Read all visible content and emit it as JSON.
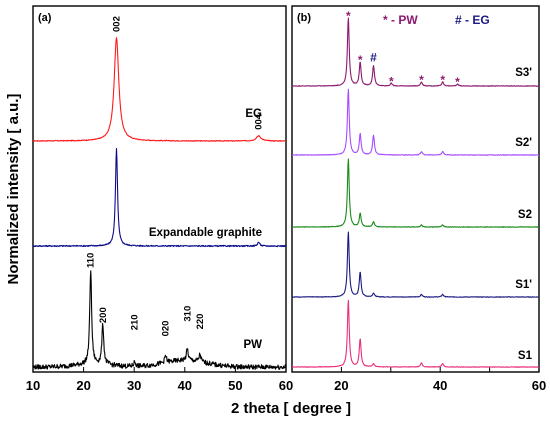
{
  "chart_data": [
    {
      "type": "line",
      "panel_label": "(a)",
      "xlabel": "2 theta [ degree ]",
      "ylabel": "Normalized intensity [ a.u.]",
      "xlim": [
        10,
        60
      ],
      "xticks": [
        "10",
        "20",
        "30",
        "40",
        "50",
        "60"
      ],
      "series": [
        {
          "name": "EG",
          "color": "#ff1a1a",
          "peaks": [
            {
              "x": 26.5,
              "rel": 1.0
            },
            {
              "x": 54.6,
              "rel": 0.05
            }
          ],
          "annotations": [
            {
              "text": "002",
              "x": 26.5
            },
            {
              "text": "004",
              "x": 54.6
            }
          ]
        },
        {
          "name": "Expandable graphite",
          "color": "#0b0b8a",
          "peaks": [
            {
              "x": 26.5,
              "rel": 1.0
            },
            {
              "x": 54.6,
              "rel": 0.04
            }
          ],
          "annotations": []
        },
        {
          "name": "PW",
          "color": "#000000",
          "peaks": [
            {
              "x": 21.4,
              "rel": 1.0
            },
            {
              "x": 23.8,
              "rel": 0.42
            },
            {
              "x": 30.1,
              "rel": 0.05
            },
            {
              "x": 36.2,
              "rel": 0.07
            },
            {
              "x": 40.5,
              "rel": 0.12
            },
            {
              "x": 43.0,
              "rel": 0.08
            }
          ],
          "annotations": [
            {
              "text": "110",
              "x": 21.4
            },
            {
              "text": "200",
              "x": 23.8
            },
            {
              "text": "210",
              "x": 30.1
            },
            {
              "text": "020",
              "x": 36.2
            },
            {
              "text": "310",
              "x": 40.5
            },
            {
              "text": "220",
              "x": 43.0
            }
          ]
        }
      ]
    },
    {
      "type": "line",
      "panel_label": "(b)",
      "xlabel": "2 theta [ degree ]",
      "xlim": [
        10,
        60
      ],
      "xticks": [
        "20",
        "40",
        "60"
      ],
      "legend": [
        "* - PW",
        "# - EG"
      ],
      "series": [
        {
          "name": "S3'",
          "color": "#8b1a70",
          "peaks": [
            {
              "x": 21.4,
              "rel": 1.0
            },
            {
              "x": 23.8,
              "rel": 0.35
            },
            {
              "x": 26.5,
              "rel": 0.3
            },
            {
              "x": 30.1,
              "rel": 0.04
            },
            {
              "x": 36.2,
              "rel": 0.06
            },
            {
              "x": 40.5,
              "rel": 0.06
            },
            {
              "x": 43.5,
              "rel": 0.03
            }
          ],
          "markers": [
            {
              "text": "*",
              "x": 21.4
            },
            {
              "text": "*",
              "x": 23.8
            },
            {
              "text": "#",
              "x": 26.5
            },
            {
              "text": "*",
              "x": 30.1
            },
            {
              "text": "*",
              "x": 36.2
            },
            {
              "text": "*",
              "x": 40.5
            },
            {
              "text": "*",
              "x": 43.5
            }
          ]
        },
        {
          "name": "S2'",
          "color": "#a64dff",
          "peaks": [
            {
              "x": 21.4,
              "rel": 1.0
            },
            {
              "x": 23.8,
              "rel": 0.32
            },
            {
              "x": 26.5,
              "rel": 0.3
            },
            {
              "x": 36.2,
              "rel": 0.05
            },
            {
              "x": 40.5,
              "rel": 0.05
            }
          ]
        },
        {
          "name": "S2",
          "color": "#1a8a1a",
          "peaks": [
            {
              "x": 21.4,
              "rel": 1.0
            },
            {
              "x": 23.8,
              "rel": 0.2
            },
            {
              "x": 26.5,
              "rel": 0.08
            },
            {
              "x": 36.2,
              "rel": 0.03
            },
            {
              "x": 40.5,
              "rel": 0.03
            }
          ]
        },
        {
          "name": "S1'",
          "color": "#1a1a80",
          "peaks": [
            {
              "x": 21.4,
              "rel": 1.0
            },
            {
              "x": 23.8,
              "rel": 0.38
            },
            {
              "x": 26.5,
              "rel": 0.06
            },
            {
              "x": 36.2,
              "rel": 0.04
            },
            {
              "x": 40.5,
              "rel": 0.04
            }
          ]
        },
        {
          "name": "S1",
          "color": "#e8307a",
          "peaks": [
            {
              "x": 21.4,
              "rel": 1.0
            },
            {
              "x": 23.8,
              "rel": 0.42
            },
            {
              "x": 26.5,
              "rel": 0.05
            },
            {
              "x": 36.2,
              "rel": 0.06
            },
            {
              "x": 40.5,
              "rel": 0.05
            }
          ]
        }
      ]
    }
  ]
}
